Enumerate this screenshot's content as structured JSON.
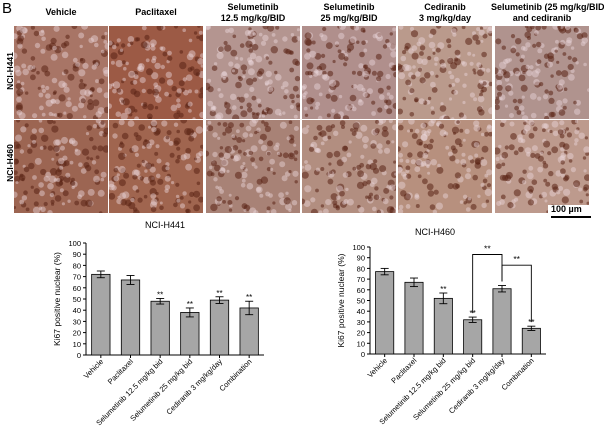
{
  "panel_label": "B",
  "columns": [
    "Vehicle",
    "Paclitaxel",
    "Selumetinib\n12.5 mg/kg/BID",
    "Selumetinib\n25 mg/kg/BID",
    "Cediranib\n3 mg/kg/day",
    "Selumetinib (25 mg/kg/BID)\nand cediranib"
  ],
  "rows": [
    "NCI-H441",
    "NCI-H460"
  ],
  "scale_bar": "100 µm",
  "micrograph_tints": {
    "NCI-H441": [
      "#a87566",
      "#9c5a45",
      "#b49590",
      "#b08f8c",
      "#ba9a8c",
      "#b0938e"
    ],
    "NCI-H460": [
      "#9c6552",
      "#a0654f",
      "#a88276",
      "#b28e80",
      "#b7907e",
      "#bd9a8d"
    ]
  },
  "chart_data": [
    {
      "type": "bar",
      "title": "NCI-H441",
      "xlabel": "",
      "ylabel": "Ki67 positive nuclear (%)",
      "ylim": [
        0,
        100
      ],
      "yticks": [
        0,
        10,
        20,
        30,
        40,
        50,
        60,
        70,
        80,
        90,
        100
      ],
      "categories": [
        "Vehicle",
        "Paclitaxel",
        "Selumetinib 12.5 mg/kg bid",
        "Selumetinib 25 mg/kg bid",
        "Cediranib 3 mg/kg/day",
        "Combination"
      ],
      "values": [
        72,
        67,
        48,
        38,
        49,
        42
      ],
      "errors": [
        3,
        4,
        2.5,
        4,
        3,
        6
      ],
      "significance": [
        "",
        "",
        "**",
        "**",
        "**",
        "**"
      ],
      "bar_color": "#a6a6a6",
      "brackets": []
    },
    {
      "type": "bar",
      "title": "NCI-H460",
      "xlabel": "",
      "ylabel": "Ki67 positive nuclear (%)",
      "ylim": [
        0,
        100
      ],
      "yticks": [
        0,
        10,
        20,
        30,
        40,
        50,
        60,
        70,
        80,
        90,
        100
      ],
      "categories": [
        "Vehicle",
        "Paclitaxel",
        "Selumetinib 12.5 mg/kg bid",
        "Selumetinib 25 mg/kg bid",
        "Cediranib 3 mg/kg/day",
        "Combination"
      ],
      "values": [
        77,
        67,
        52,
        32,
        61,
        24
      ],
      "errors": [
        3,
        4,
        5,
        2.5,
        3,
        2
      ],
      "significance": [
        "",
        "",
        "**",
        "**",
        "",
        "**"
      ],
      "bar_color": "#a6a6a6",
      "brackets": [
        {
          "from": 3,
          "to": 4,
          "label": "**"
        },
        {
          "from": 4,
          "to": 5,
          "label": "**"
        }
      ]
    }
  ]
}
